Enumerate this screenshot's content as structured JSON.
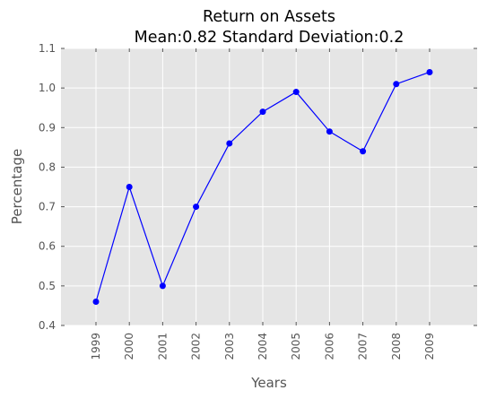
{
  "chart_data": {
    "type": "line",
    "title": "Return on Assets",
    "subtitle": "Mean:0.82 Standard Deviation:0.2",
    "xlabel": "Years",
    "ylabel": "Percentage",
    "categories": [
      "1999",
      "2000",
      "2001",
      "2002",
      "2003",
      "2004",
      "2005",
      "2006",
      "2007",
      "2008",
      "2009"
    ],
    "series": [
      {
        "values": [
          0.46,
          0.75,
          0.5,
          0.7,
          0.86,
          0.94,
          0.99,
          0.89,
          0.84,
          1.01,
          1.04
        ]
      }
    ],
    "ylim": [
      0.4,
      1.1
    ],
    "yticks": [
      "0.4",
      "0.5",
      "0.6",
      "0.7",
      "0.8",
      "0.9",
      "1.0",
      "1.1"
    ],
    "grid": true,
    "line_color": "#0000ff",
    "marker_color": "#0000ff",
    "plot_background": "#e5e5e5",
    "grid_color": "#ffffff"
  }
}
